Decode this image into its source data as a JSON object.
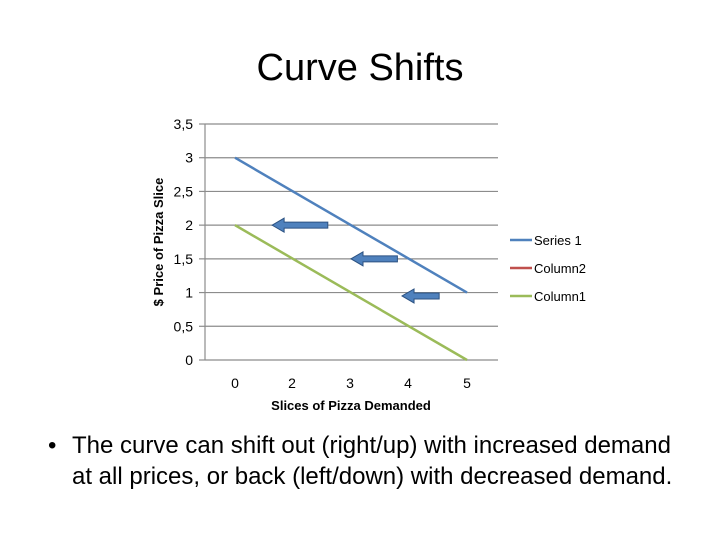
{
  "slide": {
    "title": "Curve Shifts",
    "bullet_marker": "•",
    "bullet_text": "The curve can shift out (right/up) with increased demand at all prices, or back (left/down) with decreased demand."
  },
  "chart_data": {
    "type": "line",
    "title": "",
    "xlabel": "Slices of Pizza Demanded",
    "ylabel": "$ Price of Pizza Slice",
    "x_ticks": [
      "0",
      "2",
      "3",
      "4",
      "5"
    ],
    "y_ticks": [
      "0",
      "0,5",
      "1",
      "1,5",
      "2",
      "2,5",
      "3",
      "3,5"
    ],
    "xlim": [
      0,
      5
    ],
    "ylim": [
      0,
      3.5
    ],
    "grid": "horizontal",
    "legend_position": "right",
    "series": [
      {
        "name": "Series 1",
        "color": "#4f81bd",
        "x": [
          0,
          5
        ],
        "y": [
          3,
          1
        ]
      },
      {
        "name": "Column2",
        "color": "#c0504d",
        "x": [],
        "y": []
      },
      {
        "name": "Column1",
        "color": "#9bbb59",
        "x": [
          0,
          5
        ],
        "y": [
          2,
          0
        ]
      }
    ],
    "annotations": [
      {
        "type": "arrow",
        "direction": "left",
        "color": "#4f81bd",
        "from": [
          2,
          2
        ],
        "to": [
          0.8,
          2
        ]
      },
      {
        "type": "arrow",
        "direction": "left",
        "color": "#4f81bd",
        "from": [
          3.5,
          1.5
        ],
        "to": [
          2.5,
          1.5
        ]
      },
      {
        "type": "arrow",
        "direction": "left",
        "color": "#4f81bd",
        "from": [
          4.4,
          0.95
        ],
        "to": [
          3.6,
          0.95
        ]
      }
    ]
  }
}
